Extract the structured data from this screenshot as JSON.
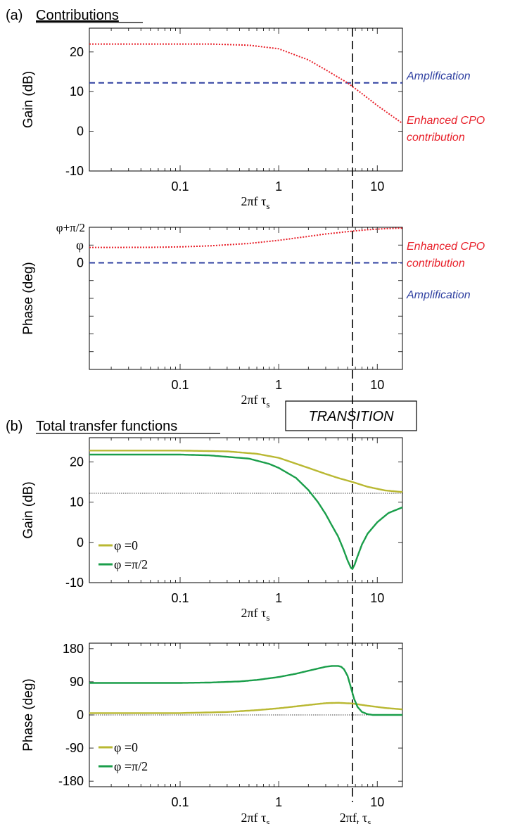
{
  "panel_a": {
    "label": "(a)",
    "title": "Contributions"
  },
  "panel_b": {
    "label": "(b)",
    "title": "Total transfer functions"
  },
  "transition_box": "TRANSITION",
  "x_axis_label": "2πf τs",
  "x_axis_label_ft": "2πft τs",
  "colors": {
    "amplification": "#2e3fa0",
    "cpo": "#e8202a",
    "phi0": "#b9b832",
    "phipi2": "#1a9e4a",
    "frame": "#000000"
  },
  "chart_data": [
    {
      "id": "a-gain",
      "type": "line",
      "ylabel": "Gain (dB)",
      "xscale": "log",
      "xlim": [
        0.012,
        18
      ],
      "ylim": [
        -10,
        26
      ],
      "yticks": [
        -10,
        0,
        10,
        20
      ],
      "ytick_labels": [
        "-10",
        "0",
        "10",
        "20"
      ],
      "xticks": [
        0.1,
        1,
        10
      ],
      "xtick_labels": [
        "0.1",
        "1",
        "10"
      ],
      "vline_x": 5.6,
      "series": [
        {
          "name": "Amplification",
          "style": "dashed",
          "color": "#2e3fa0",
          "x": [
            0.012,
            18
          ],
          "y": [
            12.2,
            12.2
          ]
        },
        {
          "name": "Enhanced CPO contribution",
          "style": "dotted",
          "color": "#e8202a",
          "x": [
            0.012,
            0.05,
            0.2,
            0.5,
            1,
            2,
            3,
            5,
            7,
            10,
            18
          ],
          "y": [
            22,
            22,
            22,
            21.7,
            20.8,
            18,
            15.5,
            12.2,
            9.5,
            6.5,
            2
          ]
        }
      ]
    },
    {
      "id": "a-phase",
      "type": "line",
      "ylabel": "Phase (deg)",
      "xscale": "log",
      "xlim": [
        0.012,
        18
      ],
      "ylim": [
        -135,
        45
      ],
      "yticks": [
        -135,
        -112.5,
        -90,
        -67.5,
        -45,
        -22.5,
        0,
        22.5
      ],
      "ytick_labels": [
        "",
        "",
        "",
        "",
        "",
        "",
        "0",
        "φ"
      ],
      "ytick_label_extra": {
        "value": 45,
        "label": "φ+π/2"
      },
      "hline_y": 45,
      "xticks": [
        0.1,
        1,
        10
      ],
      "xtick_labels": [
        "0.1",
        "1",
        "10"
      ],
      "vline_x": 5.6,
      "series": [
        {
          "name": "Enhanced CPO contribution",
          "style": "dotted",
          "color": "#e8202a",
          "x": [
            0.012,
            0.05,
            0.1,
            0.2,
            0.5,
            1,
            2,
            3,
            5,
            8,
            12,
            18
          ],
          "y": [
            19.5,
            19.6,
            20.2,
            21.5,
            24.5,
            28.5,
            33.5,
            36.5,
            39.5,
            42,
            43.2,
            44
          ]
        },
        {
          "name": "Amplification",
          "style": "dashed",
          "color": "#2e3fa0",
          "x": [
            0.012,
            18
          ],
          "y": [
            0,
            0
          ]
        }
      ]
    },
    {
      "id": "b-gain",
      "type": "line",
      "ylabel": "Gain (dB)",
      "xscale": "log",
      "xlim": [
        0.012,
        18
      ],
      "ylim": [
        -10,
        26
      ],
      "yticks": [
        -10,
        0,
        10,
        20
      ],
      "ytick_labels": [
        "-10",
        "0",
        "10",
        "20"
      ],
      "hline_y": 12.2,
      "xticks": [
        0.1,
        1,
        10
      ],
      "xtick_labels": [
        "0.1",
        "1",
        "10"
      ],
      "vline_x": 5.6,
      "legend": [
        "φ =0",
        "φ =π/2"
      ],
      "series": [
        {
          "name": "φ =0",
          "style": "solid",
          "color": "#b9b832",
          "x": [
            0.012,
            0.1,
            0.3,
            0.6,
            1,
            2,
            3,
            4,
            5.6,
            8,
            12,
            18
          ],
          "y": [
            22.8,
            22.8,
            22.6,
            22,
            21,
            18.5,
            17,
            16,
            15,
            13.8,
            12.9,
            12.5
          ]
        },
        {
          "name": "φ =π/2",
          "style": "solid",
          "color": "#1a9e4a",
          "x": [
            0.012,
            0.1,
            0.2,
            0.5,
            0.8,
            1,
            1.5,
            2,
            2.5,
            3,
            3.5,
            4,
            4.5,
            5,
            5.4,
            5.6,
            5.9,
            6.3,
            7,
            8,
            10,
            13,
            18
          ],
          "y": [
            21.8,
            21.8,
            21.6,
            20.8,
            19.5,
            18.5,
            16,
            13,
            10,
            7,
            4,
            1.5,
            -1.5,
            -4.5,
            -6.3,
            -6.6,
            -5.5,
            -3.5,
            -0.5,
            2.2,
            5,
            7.3,
            8.7
          ]
        }
      ]
    },
    {
      "id": "b-phase",
      "type": "line",
      "ylabel": "Phase (deg)",
      "xscale": "log",
      "xlim": [
        0.012,
        18
      ],
      "ylim": [
        -195,
        195
      ],
      "yticks": [
        -180,
        -90,
        0,
        90,
        180
      ],
      "ytick_labels": [
        "-180",
        "-90",
        "0",
        "90",
        "180"
      ],
      "hline_y": 0,
      "xticks": [
        0.1,
        1,
        10
      ],
      "xtick_labels": [
        "0.1",
        "1",
        "10"
      ],
      "vline_x": 5.6,
      "legend": [
        "φ =0",
        "φ =π/2"
      ],
      "series": [
        {
          "name": "φ =0",
          "style": "solid",
          "color": "#b9b832",
          "x": [
            0.012,
            0.1,
            0.3,
            0.6,
            1,
            2,
            3,
            4,
            5.6,
            8,
            12,
            18
          ],
          "y": [
            5,
            5,
            8,
            13,
            18,
            27,
            32,
            33,
            31,
            25,
            19,
            15
          ]
        },
        {
          "name": "φ =π/2",
          "style": "solid",
          "color": "#1a9e4a",
          "x": [
            0.012,
            0.1,
            0.2,
            0.4,
            0.6,
            1,
            1.5,
            2,
            2.5,
            3,
            3.5,
            4,
            4.3,
            4.6,
            5,
            5.4,
            5.8,
            6.3,
            7,
            8,
            9,
            12,
            18
          ],
          "y": [
            87,
            87,
            88,
            91,
            95,
            103,
            112,
            120,
            126,
            131,
            133,
            133,
            131,
            124,
            106,
            75,
            45,
            22,
            8,
            2,
            0,
            0,
            0
          ]
        }
      ]
    }
  ]
}
